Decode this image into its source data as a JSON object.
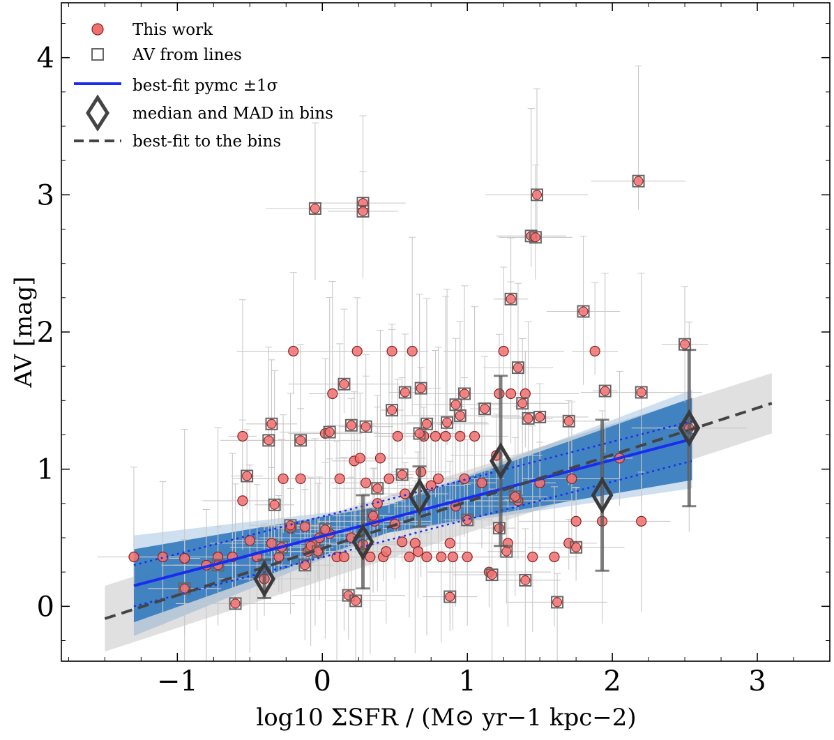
{
  "chart_data": {
    "type": "scatter",
    "xlabel": "log10 ΣSFR / (M⊙ yr−1 kpc−2)",
    "ylabel": "AV [mag]",
    "xlim": [
      -1.8,
      3.5
    ],
    "ylim": [
      -0.4,
      4.4
    ],
    "x_ticks": [
      -1,
      0,
      1,
      2,
      3
    ],
    "y_ticks": [
      0,
      1,
      2,
      3,
      4
    ],
    "x_tick_labels": [
      "−1",
      "0",
      "1",
      "2",
      "3"
    ],
    "y_tick_labels": [
      "0",
      "1",
      "2",
      "3",
      "4"
    ],
    "legend": {
      "position": "top-left",
      "entries": [
        "This work",
        "AV from lines",
        "best-fit pymc ±1σ",
        "median and MAD in bins",
        "best-fit to the bins"
      ]
    },
    "colors": {
      "points": "#f07070",
      "point_edge": "#8a2020",
      "square_edge": "#666666",
      "fit_line": "#1a2cf0",
      "posterior_band": "#3a7fc0",
      "bins_line": "#444444",
      "bins_band": "#cccccc",
      "errorbars": "#c8c8c8"
    },
    "series": [
      {
        "name": "This work",
        "points": [
          [
            -1.3,
            0.36
          ],
          [
            -1.1,
            0.36
          ],
          [
            -0.95,
            0.35
          ],
          [
            -0.8,
            0.3
          ],
          [
            -0.72,
            0.36
          ],
          [
            -0.62,
            0.36
          ],
          [
            -0.55,
            0.77
          ],
          [
            -0.55,
            1.24
          ],
          [
            -0.5,
            0.48
          ],
          [
            -0.45,
            0.36
          ],
          [
            -0.4,
            0.2
          ],
          [
            -0.35,
            0.46
          ],
          [
            -0.3,
            0.36
          ],
          [
            -0.27,
            0.93
          ],
          [
            -0.22,
            0.57
          ],
          [
            -0.2,
            1.86
          ],
          [
            -0.15,
            0.93
          ],
          [
            -0.12,
            0.58
          ],
          [
            -0.1,
            0.4
          ],
          [
            -0.05,
            0.46
          ],
          [
            -0.02,
            0.5
          ],
          [
            0.02,
            1.26
          ],
          [
            0.05,
            0.53
          ],
          [
            0.07,
            1.55
          ],
          [
            0.1,
            0.36
          ],
          [
            0.12,
            0.93
          ],
          [
            0.15,
            0.36
          ],
          [
            0.2,
            0.5
          ],
          [
            0.22,
            1.06
          ],
          [
            0.24,
            1.86
          ],
          [
            0.26,
            1.08
          ],
          [
            0.28,
            0.45
          ],
          [
            0.3,
            0.9
          ],
          [
            0.33,
            0.36
          ],
          [
            0.36,
            0.62
          ],
          [
            0.38,
            0.75
          ],
          [
            0.4,
            1.08
          ],
          [
            0.42,
            0.36
          ],
          [
            0.44,
            0.4
          ],
          [
            0.46,
            0.93
          ],
          [
            0.48,
            1.86
          ],
          [
            0.5,
            0.6
          ],
          [
            0.52,
            1.24
          ],
          [
            0.55,
            0.47
          ],
          [
            0.57,
            0.82
          ],
          [
            0.6,
            0.36
          ],
          [
            0.62,
            1.86
          ],
          [
            0.64,
            0.46
          ],
          [
            0.66,
            0.4
          ],
          [
            0.68,
            0.98
          ],
          [
            0.7,
            1.24
          ],
          [
            0.72,
            0.36
          ],
          [
            0.75,
            0.88
          ],
          [
            0.78,
            1.24
          ],
          [
            0.8,
            0.93
          ],
          [
            0.82,
            0.36
          ],
          [
            0.85,
            1.24
          ],
          [
            0.88,
            0.46
          ],
          [
            0.9,
            0.36
          ],
          [
            0.92,
            0.73
          ],
          [
            0.95,
            1.24
          ],
          [
            0.98,
            0.93
          ],
          [
            1.0,
            0.36
          ],
          [
            1.05,
            1.24
          ],
          [
            1.1,
            0.9
          ],
          [
            1.15,
            0.25
          ],
          [
            1.2,
            1.1
          ],
          [
            1.22,
            1.55
          ],
          [
            1.25,
            1.86
          ],
          [
            1.28,
            0.46
          ],
          [
            1.3,
            1.55
          ],
          [
            1.35,
            0.77
          ],
          [
            1.4,
            1.55
          ],
          [
            1.45,
            0.36
          ],
          [
            1.5,
            0.9
          ],
          [
            1.6,
            0.36
          ],
          [
            1.7,
            0.46
          ],
          [
            1.72,
            0.93
          ],
          [
            1.75,
            0.62
          ],
          [
            1.88,
            1.86
          ],
          [
            1.93,
            0.62
          ],
          [
            2.05,
            1.08
          ],
          [
            2.2,
            0.62
          ]
        ]
      },
      {
        "name": "AV from lines",
        "points": [
          [
            -0.95,
            0.13
          ],
          [
            -0.72,
            0.3
          ],
          [
            -0.6,
            0.02
          ],
          [
            -0.52,
            0.95
          ],
          [
            -0.37,
            1.21
          ],
          [
            -0.35,
            1.33
          ],
          [
            -0.33,
            0.74
          ],
          [
            -0.28,
            0.43
          ],
          [
            -0.22,
            0.59
          ],
          [
            -0.15,
            1.21
          ],
          [
            -0.12,
            0.3
          ],
          [
            -0.08,
            0.44
          ],
          [
            -0.05,
            2.9
          ],
          [
            -0.03,
            0.4
          ],
          [
            0.02,
            0.56
          ],
          [
            0.05,
            1.27
          ],
          [
            0.15,
            1.62
          ],
          [
            0.18,
            0.08
          ],
          [
            0.2,
            1.32
          ],
          [
            0.23,
            0.04
          ],
          [
            0.28,
            2.94
          ],
          [
            0.28,
            2.88
          ],
          [
            0.3,
            1.31
          ],
          [
            0.35,
            0.66
          ],
          [
            0.38,
            0.86
          ],
          [
            0.48,
            1.43
          ],
          [
            0.55,
            0.96
          ],
          [
            0.57,
            1.56
          ],
          [
            0.67,
            1.26
          ],
          [
            0.68,
            1.59
          ],
          [
            0.72,
            1.33
          ],
          [
            0.86,
            1.34
          ],
          [
            0.88,
            0.07
          ],
          [
            0.92,
            1.47
          ],
          [
            0.95,
            1.39
          ],
          [
            0.98,
            1.55
          ],
          [
            1.0,
            0.63
          ],
          [
            1.12,
            1.44
          ],
          [
            1.17,
            0.23
          ],
          [
            1.22,
            0.57
          ],
          [
            1.27,
            0.4
          ],
          [
            1.3,
            2.24
          ],
          [
            1.33,
            0.8
          ],
          [
            1.35,
            1.74
          ],
          [
            1.38,
            1.48
          ],
          [
            1.4,
            0.19
          ],
          [
            1.42,
            1.37
          ],
          [
            1.44,
            2.7
          ],
          [
            1.47,
            2.69
          ],
          [
            1.48,
            3.0
          ],
          [
            1.5,
            1.38
          ],
          [
            1.62,
            0.03
          ],
          [
            1.7,
            1.35
          ],
          [
            1.75,
            0.43
          ],
          [
            1.8,
            2.15
          ],
          [
            1.95,
            1.57
          ],
          [
            2.18,
            3.1
          ],
          [
            2.2,
            1.56
          ],
          [
            2.5,
            1.91
          ],
          [
            2.53,
            1.3
          ]
        ]
      },
      {
        "name": "median and MAD in bins",
        "points": [
          [
            -0.4,
            0.2
          ],
          [
            0.28,
            0.47
          ],
          [
            0.67,
            0.8
          ],
          [
            1.23,
            1.06
          ],
          [
            1.93,
            0.81
          ],
          [
            2.53,
            1.3
          ]
        ],
        "mad": [
          0.14,
          0.34,
          0.22,
          0.62,
          0.55,
          0.57
        ]
      }
    ],
    "fits": {
      "best_fit_pymc": {
        "x_range": [
          -1.3,
          2.55
        ],
        "y_range": [
          0.15,
          1.22
        ]
      },
      "best_fit_bins": {
        "x_range": [
          -1.5,
          3.1
        ],
        "y_range": [
          -0.09,
          1.48
        ]
      }
    }
  }
}
